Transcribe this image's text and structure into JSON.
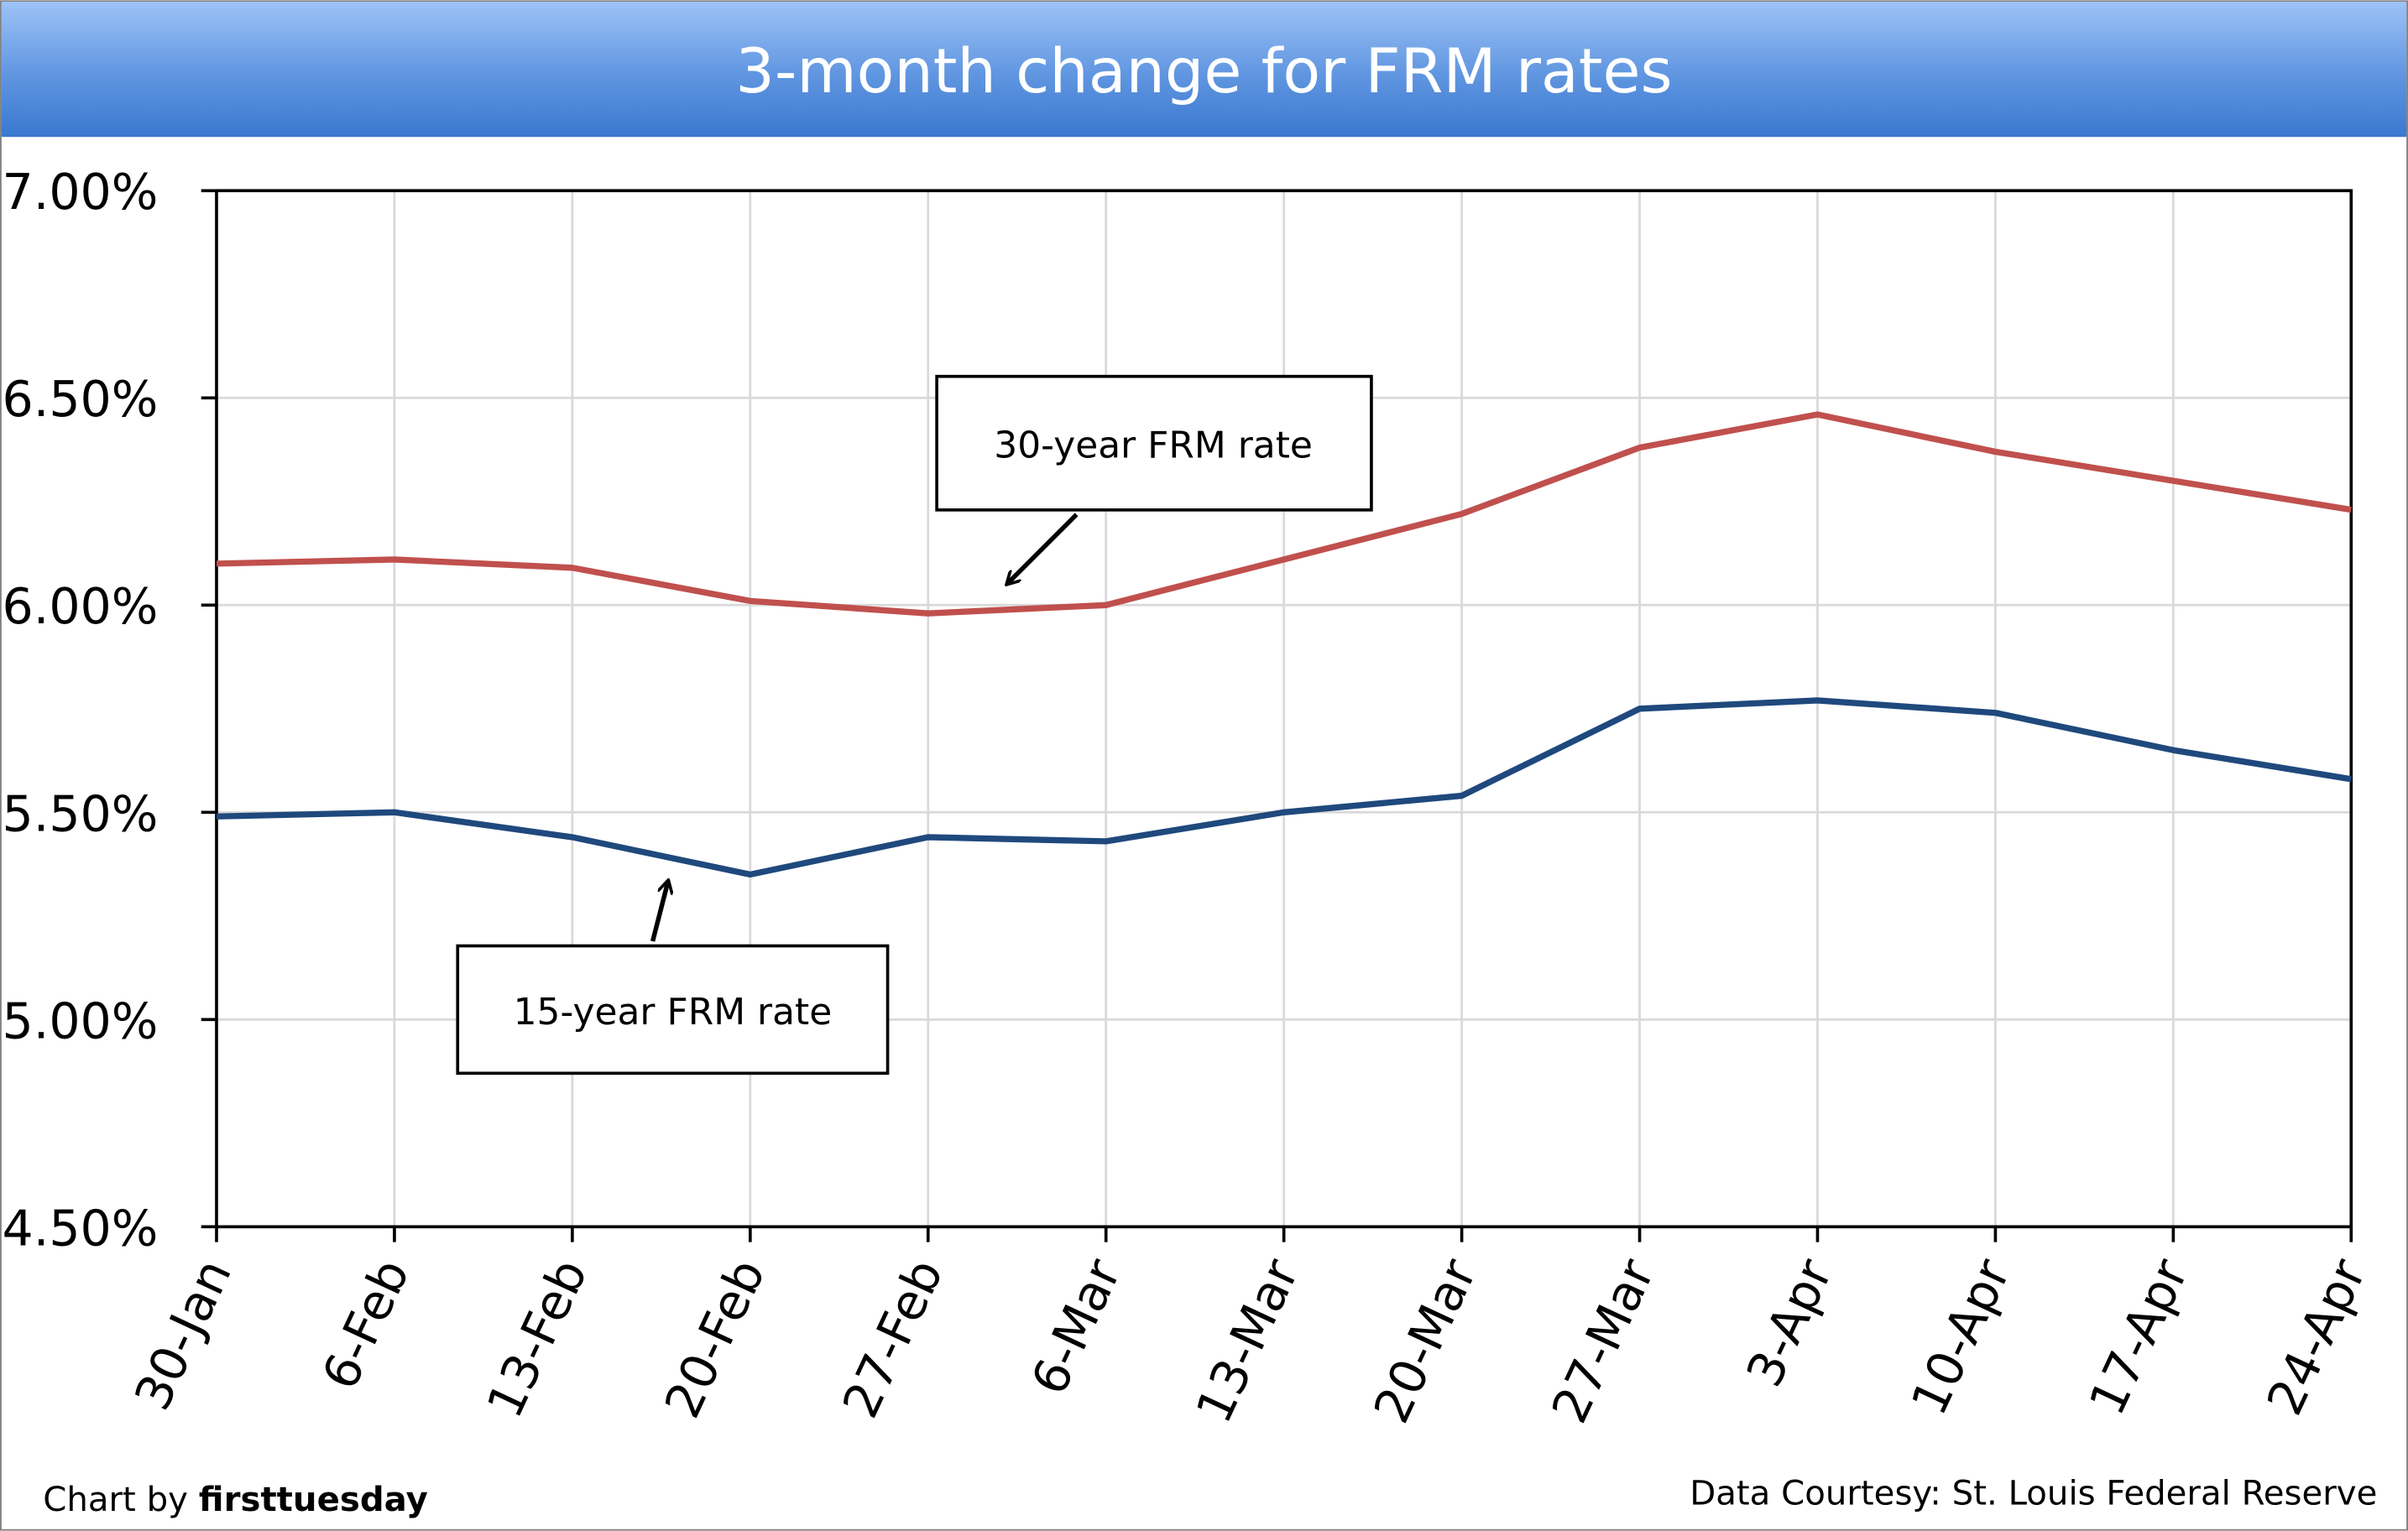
{
  "chart_data": {
    "type": "line",
    "title": "3-month change for FRM rates",
    "xlabel": "",
    "ylabel": "",
    "categories": [
      "30-Jan",
      "6-Feb",
      "13-Feb",
      "20-Feb",
      "27-Feb",
      "6-Mar",
      "13-Mar",
      "20-Mar",
      "27-Mar",
      "3-Apr",
      "10-Apr",
      "17-Apr",
      "24-Apr"
    ],
    "ylim": [
      4.5,
      7.0
    ],
    "yticks": [
      "7.00%",
      "6.50%",
      "6.00%",
      "5.50%",
      "5.00%",
      "4.50%"
    ],
    "ytick_values": [
      7.0,
      6.5,
      6.0,
      5.5,
      5.0,
      4.5
    ],
    "grid": true,
    "series": [
      {
        "name": "30-year FRM rate",
        "color": "#C0504D",
        "values": [
          6.1,
          6.11,
          6.09,
          6.01,
          5.98,
          6.0,
          6.11,
          6.22,
          6.38,
          6.46,
          6.37,
          6.3,
          6.23
        ]
      },
      {
        "name": "15-year FRM rate",
        "color": "#1F497D",
        "values": [
          5.49,
          5.5,
          5.44,
          5.35,
          5.44,
          5.43,
          5.5,
          5.54,
          5.75,
          5.77,
          5.74,
          5.65,
          5.58
        ]
      }
    ],
    "annotations": [
      "30-year FRM rate",
      "15-year FRM rate"
    ]
  },
  "footer": {
    "credit_prefix": "Chart by ",
    "credit_brand": "firsttuesday",
    "source": "Data Courtesy: St. Louis Federal Reserve"
  }
}
